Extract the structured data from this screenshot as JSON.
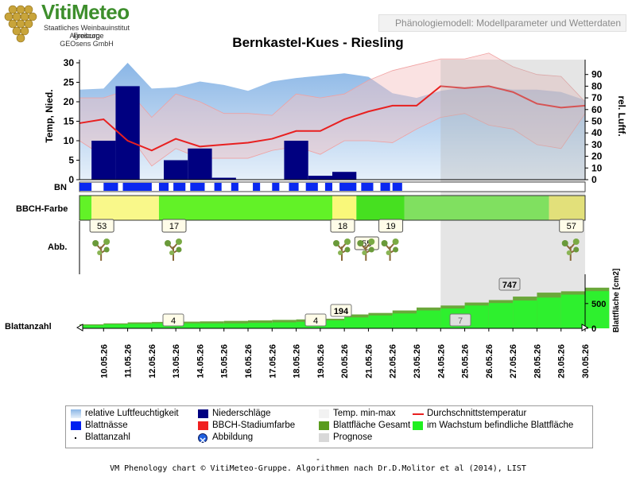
{
  "logo": {
    "title": "VitiMeteo",
    "line1": "Staatliches Weinbauinstitut Freiburg",
    "line2": "Agroscope",
    "line3": "GEOsens GmbH"
  },
  "header": {
    "text": "Phänologiemodell: Modellparameter und Wetterdaten"
  },
  "chart_data": {
    "type": "line",
    "title": "Bernkastel-Kues - Riesling",
    "ylabel_left": "Temp, Nied.",
    "ylabel_right": "rel. Luftf.",
    "ylabel_leaf": "Blattfläche [cm2]",
    "ylim_left": [
      0,
      30
    ],
    "ylim_right": [
      0,
      100
    ],
    "yticks_left": [
      "0",
      "5",
      "10",
      "15",
      "20",
      "25",
      "30"
    ],
    "yticks_right": [
      "0",
      "10",
      "20",
      "30",
      "40",
      "50",
      "60",
      "70",
      "80",
      "90"
    ],
    "yticks_leaf": [
      "0",
      "500"
    ],
    "grid": false,
    "categories": [
      "10.05.26",
      "11.05.26",
      "12.05.26",
      "13.05.26",
      "14.05.26",
      "15.05.26",
      "16.05.26",
      "17.05.26",
      "18.05.26",
      "19.05.26",
      "20.05.26",
      "21.05.26",
      "22.05.26",
      "23.05.26",
      "24.05.26",
      "25.05.26",
      "26.05.26",
      "27.05.26",
      "28.05.26",
      "29.05.26",
      "30.05.26"
    ],
    "forecast_start": "24.05.26",
    "series": [
      {
        "name": "relative Luftfeuchtigkeit",
        "color": "#9fc4e8",
        "x": [
          "09.05.26",
          "10.05.26",
          "11.05.26",
          "12.05.26",
          "13.05.26",
          "14.05.26",
          "15.05.26",
          "16.05.26",
          "17.05.26",
          "18.05.26",
          "19.05.26",
          "20.05.26",
          "21.05.26",
          "22.05.26",
          "23.05.26",
          "24.05.26",
          "25.05.26",
          "26.05.26",
          "27.05.26",
          "28.05.26",
          "29.05.26",
          "30.05.26"
        ],
        "values": [
          77,
          78,
          100,
          78,
          79,
          84,
          81,
          76,
          84,
          87,
          89,
          91,
          88,
          74,
          70,
          76,
          79,
          80,
          77,
          77,
          75,
          68
        ]
      },
      {
        "name": "Niederschläge",
        "color": "#000080",
        "x": [
          "10.05.26",
          "11.05.26",
          "13.05.26",
          "14.05.26",
          "15.05.26",
          "18.05.26",
          "19.05.26",
          "20.05.26"
        ],
        "values": [
          10,
          24,
          5,
          8,
          0.5,
          10,
          1,
          2
        ]
      },
      {
        "name": "Temp. min-max",
        "color": "#f4c8c8",
        "x": [
          "09.05.26",
          "10.05.26",
          "11.05.26",
          "12.05.26",
          "13.05.26",
          "14.05.26",
          "15.05.26",
          "16.05.26",
          "17.05.26",
          "18.05.26",
          "19.05.26",
          "20.05.26",
          "21.05.26",
          "22.05.26",
          "23.05.26",
          "24.05.26",
          "25.05.26",
          "26.05.26",
          "27.05.26",
          "28.05.26",
          "29.05.26",
          "30.05.26"
        ],
        "min": [
          10,
          6,
          12,
          3.5,
          8,
          5.5,
          5.5,
          5.5,
          7.5,
          8.5,
          6.5,
          10,
          10,
          9.5,
          13,
          16,
          17,
          14,
          13,
          9,
          8,
          17
        ],
        "max": [
          21,
          21,
          23,
          16,
          22,
          20,
          17,
          17,
          16.5,
          22,
          21,
          22,
          25.5,
          28,
          29.5,
          31,
          31,
          32.5,
          29,
          27,
          26.5,
          20
        ]
      },
      {
        "name": "Durchschnittstemperatur",
        "color": "#e82020",
        "x": [
          "09.05.26",
          "10.05.26",
          "11.05.26",
          "12.05.26",
          "13.05.26",
          "14.05.26",
          "15.05.26",
          "16.05.26",
          "17.05.26",
          "18.05.26",
          "19.05.26",
          "20.05.26",
          "21.05.26",
          "22.05.26",
          "23.05.26",
          "24.05.26",
          "25.05.26",
          "26.05.26",
          "27.05.26",
          "28.05.26",
          "29.05.26",
          "30.05.26"
        ],
        "values": [
          14.5,
          15.5,
          10,
          7.5,
          10.5,
          8.5,
          9,
          9.5,
          10.5,
          12.5,
          12.5,
          15.5,
          17.5,
          19,
          19,
          24,
          23.5,
          24,
          22.5,
          19.5,
          18.5,
          19
        ]
      }
    ],
    "wetness_label": "BN",
    "wetness_segments": [
      [
        0.0,
        0.5
      ],
      [
        1.0,
        1.6
      ],
      [
        1.8,
        3.0
      ],
      [
        3.3,
        3.7
      ],
      [
        3.9,
        4.4
      ],
      [
        4.6,
        5.2
      ],
      [
        5.6,
        5.9
      ],
      [
        6.3,
        6.6
      ],
      [
        7.2,
        7.5
      ],
      [
        8.0,
        8.3
      ],
      [
        8.7,
        9.1
      ],
      [
        9.4,
        9.9
      ],
      [
        10.2,
        10.5
      ],
      [
        10.8,
        11.5
      ],
      [
        11.7,
        12.2
      ],
      [
        12.5,
        12.9
      ],
      [
        13.0,
        13.4
      ]
    ],
    "bbch_label": "BBCH-Farbe",
    "bbch_bands": [
      {
        "from": 0,
        "to": 0.5,
        "color": "#62f227"
      },
      {
        "from": 0.5,
        "to": 3.3,
        "color": "#f9f88a"
      },
      {
        "from": 3.3,
        "to": 10.5,
        "color": "#62f227"
      },
      {
        "from": 10.5,
        "to": 11.5,
        "color": "#f9f87a"
      },
      {
        "from": 11.5,
        "to": 13.5,
        "color": "#46e020"
      },
      {
        "from": 13.5,
        "to": 19.5,
        "color": "#80e060"
      },
      {
        "from": 19.5,
        "to": 21.0,
        "color": "#e2e07a"
      }
    ],
    "stage_label": "Abb.",
    "stages": [
      {
        "label": "53",
        "at": 0.5
      },
      {
        "label": "17",
        "at": 3.5
      },
      {
        "label": "18",
        "at": 10.5
      },
      {
        "label": "55",
        "at": 11.5
      },
      {
        "label": "19",
        "at": 12.5
      },
      {
        "label": "57",
        "at": 20.0
      }
    ],
    "leaf_label": "Blattanzahl",
    "leaf_total": [
      80,
      100,
      120,
      130,
      135,
      140,
      150,
      160,
      170,
      180,
      194,
      280,
      310,
      360,
      420,
      460,
      520,
      570,
      640,
      720,
      747,
      820
    ],
    "leaf_growing": [
      60,
      80,
      90,
      100,
      100,
      100,
      100,
      110,
      120,
      130,
      160,
      220,
      260,
      300,
      360,
      400,
      460,
      510,
      560,
      620,
      680,
      750
    ],
    "leaf_annotations": [
      "4",
      "194",
      "4",
      "7",
      "747"
    ]
  },
  "legend": [
    {
      "label": "relative Luftfeuchtigkeit",
      "swatch": "gradient"
    },
    {
      "label": "Niederschläge",
      "swatch": "#000080"
    },
    {
      "label": "Temp. min-max",
      "swatch": "#f2f2f2"
    },
    {
      "label": "Durchschnittstemperatur",
      "swatch": "line"
    },
    {
      "label": "Blattnässe",
      "swatch": "#0020f0"
    },
    {
      "label": "BBCH-Stadiumfarbe",
      "swatch": "#f02020"
    },
    {
      "label": "Blattfläche Gesamt",
      "swatch": "#5a9c1e"
    },
    {
      "label": "im Wachstum befindliche Blattfläche",
      "swatch": "#20f020"
    },
    {
      "label": "Blattanzahl",
      "swatch": "dot"
    },
    {
      "label": "Abbildung",
      "swatch": "circle"
    },
    {
      "label": "Prognose",
      "swatch": "#d8d8d8"
    }
  ],
  "dash": "-",
  "footer": "VM Phenology chart © VitiMeteo-Gruppe. Algorithmen nach Dr.D.Molitor et al (2014), LIST"
}
